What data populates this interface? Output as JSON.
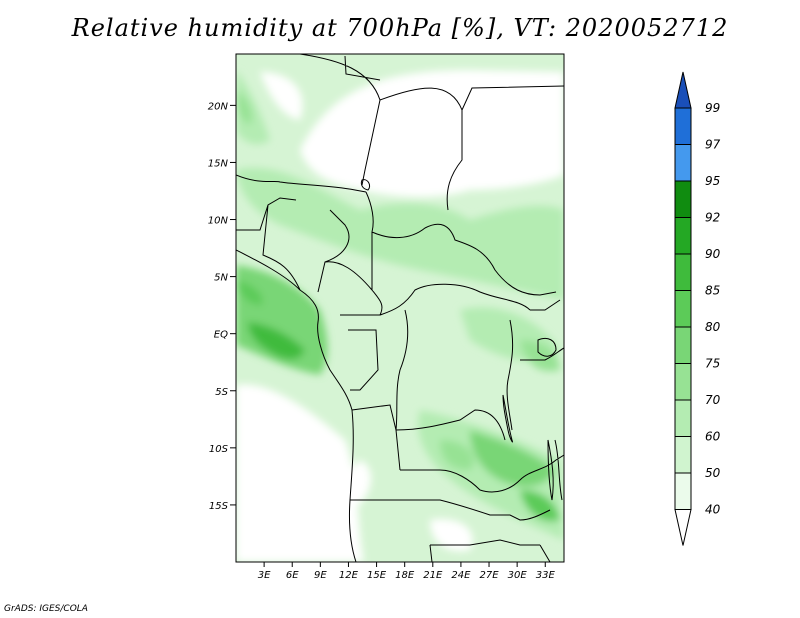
{
  "title": "Relative humidity at 700hPa [%], VT: 2020052712",
  "credit": "GrADS: IGES/COLA",
  "map": {
    "lon_range": [
      0,
      35
    ],
    "lat_range": [
      -20,
      24.5
    ],
    "lat_ticks": [
      "20N",
      "15N",
      "10N",
      "5N",
      "EQ",
      "5S",
      "10S",
      "15S"
    ],
    "lon_ticks": [
      "3E",
      "6E",
      "9E",
      "12E",
      "15E",
      "18E",
      "21E",
      "24E",
      "27E",
      "30E",
      "33E"
    ]
  },
  "colorbar": {
    "levels": [
      "40",
      "50",
      "60",
      "70",
      "75",
      "80",
      "85",
      "90",
      "92",
      "95",
      "97",
      "99"
    ],
    "colors": {
      "below_40": "#ffffff",
      "40_50": "#ebfbeb",
      "50_60": "#d0f4cf",
      "60_70": "#b4ecb2",
      "70_75": "#97e294",
      "75_80": "#79d676",
      "80_85": "#5ccb58",
      "85_90": "#3fbb3c",
      "90_92": "#24a824",
      "92_95": "#108c10",
      "95_97": "#4499ee",
      "97_99": "#1f6fd8",
      "above_99": "#1a4fb8"
    }
  }
}
